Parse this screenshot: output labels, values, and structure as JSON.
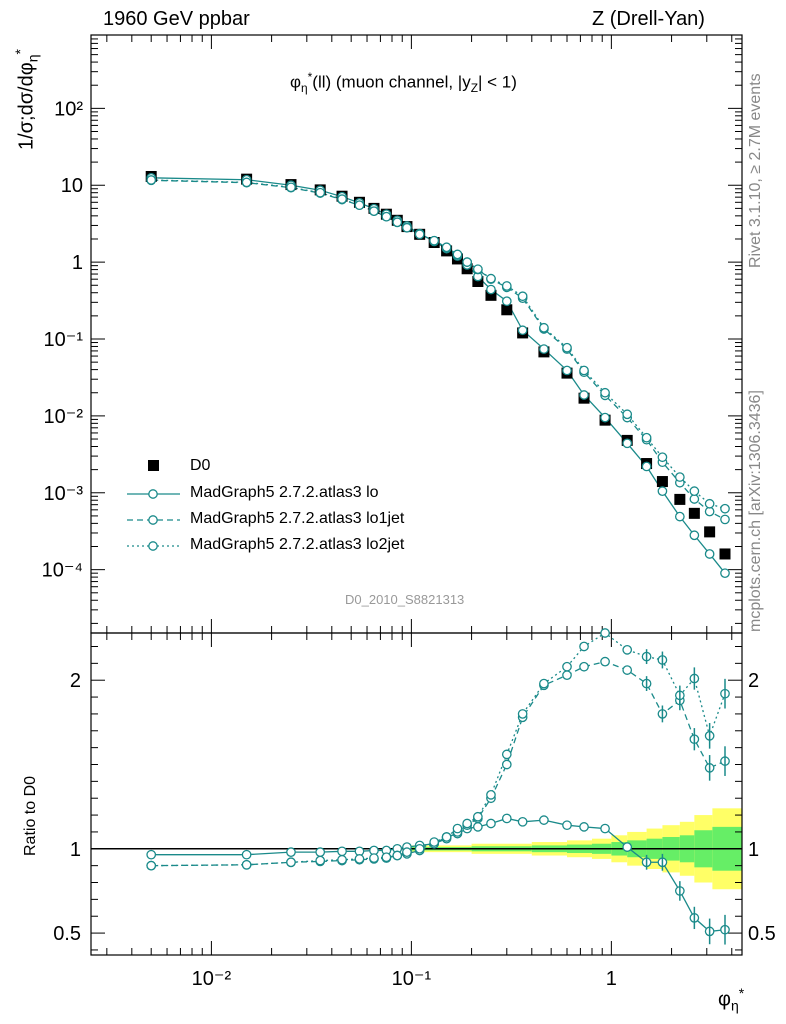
{
  "header": {
    "left": "1960 GeV ppbar",
    "right": "Z (Drell-Yan)"
  },
  "side_labels": {
    "rivet": "Rivet 3.1.10, ≥ 2.7M events",
    "source": "mcplots.cern.ch [arXiv:1306.3436]"
  },
  "plot_title": "φη*(ll) (muon channel, |yZ| < 1)",
  "plot_title_parts": {
    "main": "φ",
    "sub": "η",
    "sup": "*",
    "rest": "(ll) (muon channel, |y",
    "sub2": "Z",
    "end": "| < 1)"
  },
  "ylabel_main": "1/σ;dσ/dφη*",
  "ylabel_parts": {
    "a": "1/σ;dσ/dφ",
    "sub": "η",
    "sup": "*"
  },
  "ylabel_ratio": "Ratio to D0",
  "xlabel": {
    "main": "φ",
    "sub": "η",
    "sup": "*"
  },
  "analysis_id": "D0_2010_S8821313",
  "legend": {
    "data": "D0",
    "lo": "MadGraph5 2.7.2.atlas3 lo",
    "lo1jet": "MadGraph5 2.7.2.atlas3 lo1jet",
    "lo2jet": "MadGraph5 2.7.2.atlas3 lo2jet"
  },
  "colors": {
    "mc": "#1a8a8a",
    "band_inner": "#66ee66",
    "band_outer": "#ffff66",
    "data": "#000000"
  },
  "chart_data": {
    "type": "scatter",
    "x_scale": "log",
    "main": {
      "y_scale": "log",
      "xlim": [
        0.0025,
        4.5
      ],
      "ylim": [
        1.5e-05,
        900
      ],
      "x_tick_labels": [
        "10⁻²",
        "10⁻¹",
        "1"
      ],
      "y_tick_labels": [
        "10⁻⁴",
        "10⁻³",
        "10⁻²",
        "10⁻¹",
        "1",
        "10",
        "10²"
      ]
    },
    "ratio": {
      "ylim": [
        0.37,
        2.28
      ],
      "y_tick_labels": [
        "0.5",
        "1",
        "2"
      ]
    },
    "x": [
      0.005,
      0.015,
      0.025,
      0.035,
      0.045,
      0.055,
      0.065,
      0.075,
      0.085,
      0.095,
      0.11,
      0.13,
      0.15,
      0.17,
      0.19,
      0.215,
      0.25,
      0.3,
      0.36,
      0.46,
      0.6,
      0.73,
      0.93,
      1.2,
      1.5,
      1.8,
      2.2,
      2.6,
      3.1,
      3.7
    ],
    "series": [
      {
        "name": "D0",
        "values": [
          13.0,
          12.0,
          10.2,
          8.7,
          7.2,
          6.0,
          5.0,
          4.2,
          3.5,
          2.9,
          2.3,
          1.8,
          1.4,
          1.1,
          0.82,
          0.56,
          0.37,
          0.24,
          0.12,
          0.068,
          0.036,
          0.017,
          0.0088,
          0.0048,
          0.0024,
          0.0014,
          0.00082,
          0.00054,
          0.00031,
          0.00016
        ]
      },
      {
        "name": "MadGraph5 2.7.2.atlas3 lo",
        "values": [
          12.5,
          11.8,
          10.0,
          8.6,
          7.1,
          5.9,
          4.95,
          4.2,
          3.5,
          2.95,
          2.35,
          1.86,
          1.5,
          1.2,
          0.92,
          0.65,
          0.44,
          0.31,
          0.13,
          0.074,
          0.039,
          0.0187,
          0.0095,
          0.0044,
          0.0022,
          0.00105,
          0.00049,
          0.00028,
          0.00016,
          9e-05
        ]
      },
      {
        "name": "MadGraph5 2.7.2.atlas3 lo1jet",
        "values": [
          11.6,
          10.8,
          9.3,
          7.9,
          6.5,
          5.5,
          4.6,
          3.9,
          3.3,
          2.8,
          2.3,
          1.9,
          1.55,
          1.25,
          1.0,
          0.8,
          0.6,
          0.47,
          0.34,
          0.135,
          0.074,
          0.037,
          0.0185,
          0.0095,
          0.0049,
          0.0025,
          0.00135,
          0.00083,
          0.00057,
          0.00045
        ]
      },
      {
        "name": "MadGraph5 2.7.2.atlas3 lo2jet",
        "values": [
          11.7,
          10.9,
          9.4,
          8.0,
          6.6,
          5.5,
          4.6,
          3.9,
          3.3,
          2.8,
          2.3,
          1.9,
          1.56,
          1.26,
          1.0,
          0.81,
          0.61,
          0.49,
          0.36,
          0.14,
          0.077,
          0.039,
          0.02,
          0.0105,
          0.0052,
          0.0029,
          0.0016,
          0.00105,
          0.00072,
          0.00062
        ]
      }
    ],
    "ratio_series": [
      {
        "name": "MadGraph5 2.7.2.atlas3 lo",
        "values": [
          0.965,
          0.965,
          0.98,
          0.98,
          0.985,
          0.985,
          0.99,
          0.99,
          1.0,
          1.01,
          1.02,
          1.03,
          1.07,
          1.09,
          1.12,
          1.13,
          1.15,
          1.18,
          1.16,
          1.17,
          1.14,
          1.13,
          1.12,
          1.01,
          0.92,
          0.92,
          0.75,
          0.59,
          0.51,
          0.52
        ]
      },
      {
        "name": "MadGraph5 2.7.2.atlas3 lo1jet",
        "values": [
          0.9,
          0.905,
          0.92,
          0.925,
          0.93,
          0.935,
          0.94,
          0.945,
          0.96,
          0.97,
          0.99,
          1.03,
          1.06,
          1.1,
          1.14,
          1.18,
          1.3,
          1.5,
          1.78,
          1.97,
          2.03,
          2.08,
          2.11,
          2.06,
          1.98,
          1.8,
          1.88,
          1.65,
          1.48,
          1.52
        ]
      },
      {
        "name": "MadGraph5 2.7.2.atlas3 lo2jet",
        "values": [
          0.9,
          0.905,
          0.92,
          0.93,
          0.935,
          0.94,
          0.945,
          0.95,
          0.96,
          0.98,
          1.0,
          1.04,
          1.07,
          1.12,
          1.15,
          1.19,
          1.32,
          1.56,
          1.8,
          1.98,
          2.08,
          2.2,
          2.28,
          2.18,
          2.14,
          2.12,
          1.91,
          2.01,
          1.67,
          1.92
        ]
      }
    ],
    "ratio_band": {
      "x_edges": [
        0.1,
        0.2,
        0.4,
        0.6,
        0.8,
        1.0,
        1.2,
        1.5,
        1.8,
        2.2,
        2.6,
        3.2,
        4.5
      ],
      "inner": [
        0.01,
        0.015,
        0.02,
        0.025,
        0.03,
        0.04,
        0.05,
        0.06,
        0.07,
        0.08,
        0.11,
        0.13
      ],
      "outer": [
        0.02,
        0.03,
        0.04,
        0.05,
        0.06,
        0.08,
        0.1,
        0.12,
        0.14,
        0.16,
        0.2,
        0.24
      ]
    }
  }
}
